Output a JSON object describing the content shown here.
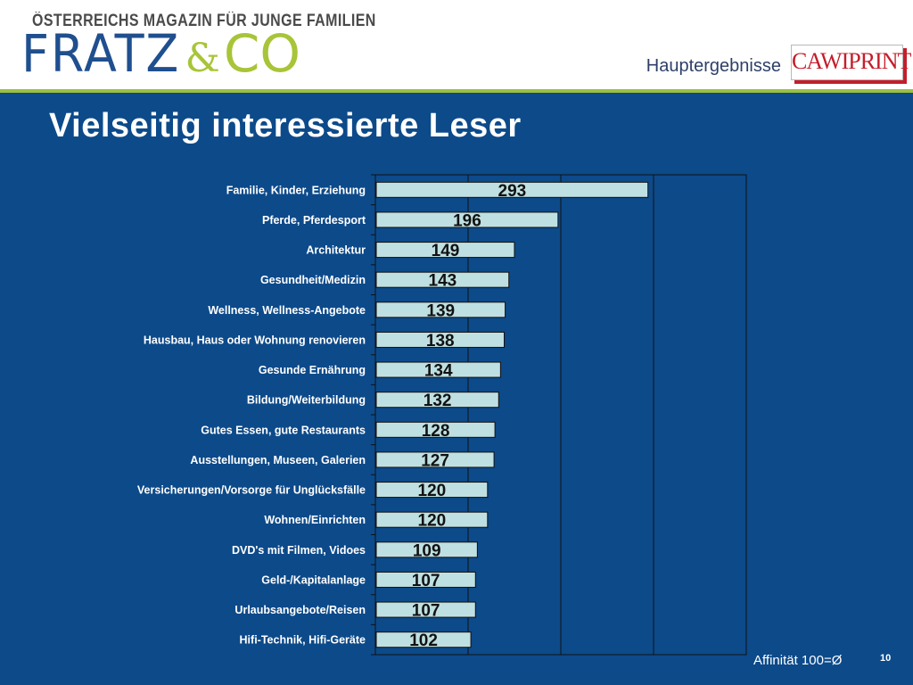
{
  "header": {
    "tagline": "ÖSTERREICHS MAGAZIN FÜR JUNGE FAMILIEN",
    "logo_fratz": "FRATZ",
    "logo_amp": "&",
    "logo_co": "CO",
    "section": "Hauptergebnisse",
    "cawi_logo": "CAWIPRINT"
  },
  "title": "Vielseitig interessierte Leser",
  "footnote": "Affinität 100=Ø",
  "page_number": "10",
  "colors": {
    "background": "#0c4a8a",
    "bar_fill": "#bfe0e2",
    "accent_green": "#9cbf41",
    "logo_blue": "#1f4f8e",
    "cawi_red": "#c41e2b"
  },
  "chart_data": {
    "type": "bar",
    "orientation": "horizontal",
    "categories": [
      "Familie, Kinder, Erziehung",
      "Pferde, Pferdesport",
      "Architektur",
      "Gesundheit/Medizin",
      "Wellness, Wellness-Angebote",
      "Hausbau, Haus oder Wohnung renovieren",
      "Gesunde Ernährung",
      "Bildung/Weiterbildung",
      "Gutes Essen, gute Restaurants",
      "Ausstellungen, Museen, Galerien",
      "Versicherungen/Vorsorge für Unglücksfälle",
      "Wohnen/Einrichten",
      "DVD's mit Filmen, Vidoes",
      "Geld-/Kapitalanlage",
      "Urlaubsangebote/Reisen",
      "Hifi-Technik, Hifi-Geräte"
    ],
    "values": [
      293,
      196,
      149,
      143,
      139,
      138,
      134,
      132,
      128,
      127,
      120,
      120,
      109,
      107,
      107,
      102
    ],
    "data_labels": [
      "293",
      "196",
      "149",
      "143",
      "139",
      "138",
      "134",
      "132",
      "128",
      "127",
      "120",
      "120",
      "109",
      "107",
      "107",
      "102"
    ],
    "xlim": [
      0,
      400
    ],
    "gridlines_x": [
      100,
      200,
      300,
      400
    ],
    "grid": true,
    "legend": "none"
  }
}
